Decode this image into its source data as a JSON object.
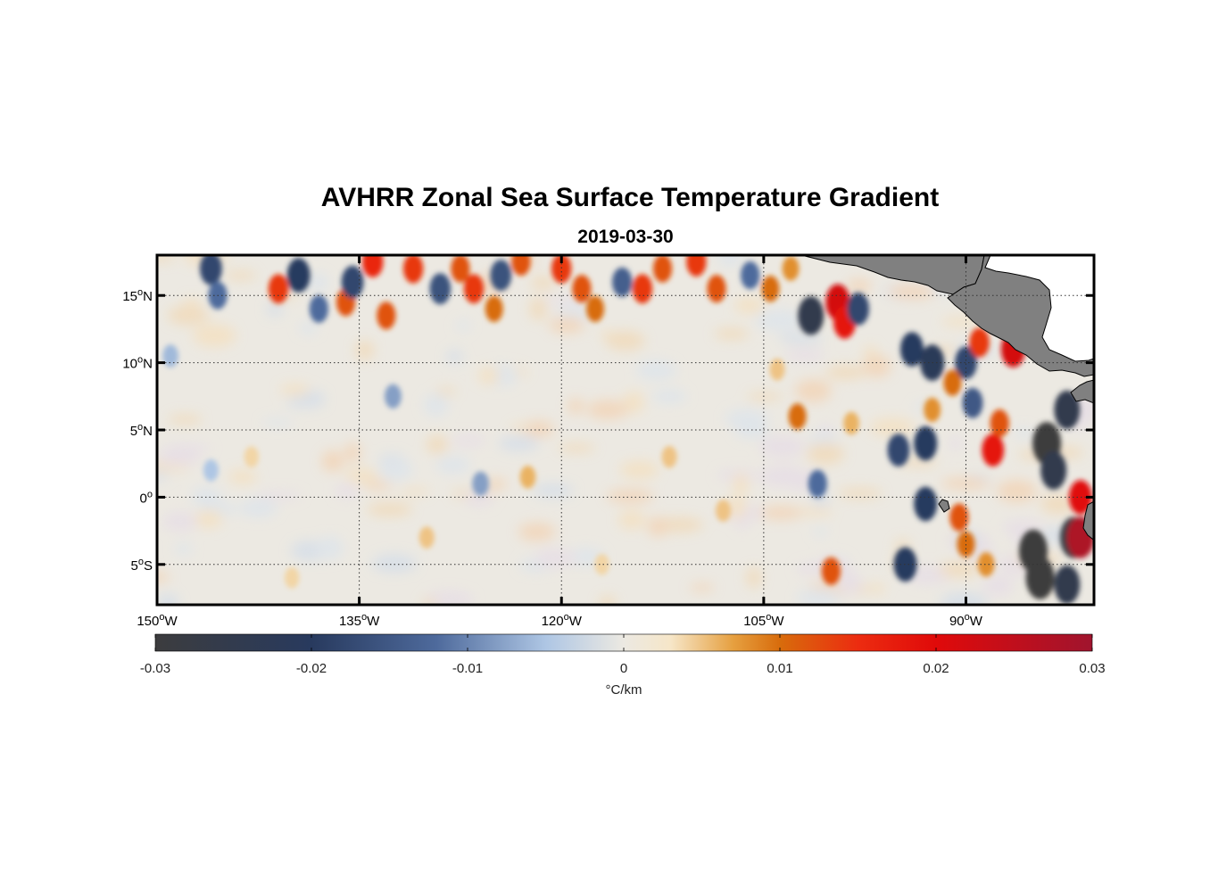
{
  "chart_data": {
    "type": "heatmap",
    "title": "AVHRR Zonal Sea Surface Temperature Gradient",
    "subtitle": "2019-03-30",
    "x_axis": {
      "range_deg": [
        -150,
        -80.5
      ],
      "ticks": [
        {
          "value": -150,
          "num": "150",
          "hemi": "W"
        },
        {
          "value": -135,
          "num": "135",
          "hemi": "W"
        },
        {
          "value": -120,
          "num": "120",
          "hemi": "W"
        },
        {
          "value": -105,
          "num": "105",
          "hemi": "W"
        },
        {
          "value": -90,
          "num": "90",
          "hemi": "W"
        }
      ]
    },
    "y_axis": {
      "range_deg": [
        -8,
        18
      ],
      "ticks": [
        {
          "value": 15,
          "num": "15",
          "hemi": "N"
        },
        {
          "value": 10,
          "num": "10",
          "hemi": "N"
        },
        {
          "value": 5,
          "num": "5",
          "hemi": "N"
        },
        {
          "value": 0,
          "num": "0",
          "hemi": ""
        },
        {
          "value": -5,
          "num": "5",
          "hemi": "S"
        }
      ]
    },
    "grid": true,
    "land_color": "#808080",
    "colorbar": {
      "range": [
        -0.03,
        0.03
      ],
      "ticks": [
        "-0.03",
        "-0.02",
        "-0.01",
        "0",
        "0.01",
        "0.02",
        "0.03"
      ],
      "tick_values": [
        -0.03,
        -0.02,
        -0.01,
        0,
        0.01,
        0.02,
        0.03
      ],
      "label": "°C/km",
      "stops": [
        {
          "v": -0.03,
          "color": "#3c3c3e"
        },
        {
          "v": -0.02,
          "color": "#283a5e"
        },
        {
          "v": -0.012,
          "color": "#4e6a9c"
        },
        {
          "v": -0.005,
          "color": "#aec6e4"
        },
        {
          "v": 0,
          "color": "#ece9e2"
        },
        {
          "v": 0.003,
          "color": "#f6e6c8"
        },
        {
          "v": 0.007,
          "color": "#e6a040"
        },
        {
          "v": 0.01,
          "color": "#d86c0c"
        },
        {
          "v": 0.015,
          "color": "#ec2c10"
        },
        {
          "v": 0.02,
          "color": "#e00a0a"
        },
        {
          "v": 0.03,
          "color": "#a0142e"
        }
      ]
    },
    "features": [
      {
        "lon": -101.5,
        "lat": 13.5,
        "value": -0.025
      },
      {
        "lon": -99.5,
        "lat": 14.5,
        "value": 0.022
      },
      {
        "lon": -99.0,
        "lat": 13.0,
        "value": 0.018
      },
      {
        "lon": -98.0,
        "lat": 14.0,
        "value": -0.018
      },
      {
        "lon": -94.0,
        "lat": 11.0,
        "value": -0.02
      },
      {
        "lon": -92.5,
        "lat": 10.0,
        "value": -0.022
      },
      {
        "lon": -90.0,
        "lat": 10.0,
        "value": -0.018
      },
      {
        "lon": -89.0,
        "lat": 11.5,
        "value": 0.014
      },
      {
        "lon": -86.5,
        "lat": 11.0,
        "value": 0.022
      },
      {
        "lon": -91.0,
        "lat": 8.5,
        "value": 0.01
      },
      {
        "lon": -92.5,
        "lat": 6.5,
        "value": 0.008
      },
      {
        "lon": -89.5,
        "lat": 7.0,
        "value": -0.015
      },
      {
        "lon": -87.5,
        "lat": 5.5,
        "value": 0.012
      },
      {
        "lon": -88.0,
        "lat": 3.5,
        "value": 0.018
      },
      {
        "lon": -84.0,
        "lat": 4.0,
        "value": -0.03
      },
      {
        "lon": -82.5,
        "lat": 6.5,
        "value": -0.025
      },
      {
        "lon": -83.5,
        "lat": 2.0,
        "value": -0.025
      },
      {
        "lon": -81.5,
        "lat": 0.0,
        "value": 0.02
      },
      {
        "lon": -85.0,
        "lat": -4.0,
        "value": -0.03
      },
      {
        "lon": -82.0,
        "lat": -3.0,
        "value": -0.028
      },
      {
        "lon": -81.5,
        "lat": -3.0,
        "value": 0.028
      },
      {
        "lon": -82.5,
        "lat": -6.5,
        "value": -0.025
      },
      {
        "lon": -84.5,
        "lat": -6.0,
        "value": -0.03
      },
      {
        "lon": -93.0,
        "lat": 4.0,
        "value": -0.02
      },
      {
        "lon": -95.0,
        "lat": 3.5,
        "value": -0.018
      },
      {
        "lon": -93.0,
        "lat": -0.5,
        "value": -0.02
      },
      {
        "lon": -94.5,
        "lat": -5.0,
        "value": -0.02
      },
      {
        "lon": -90.5,
        "lat": -1.5,
        "value": 0.012
      },
      {
        "lon": -90.0,
        "lat": -3.5,
        "value": 0.01
      },
      {
        "lon": -88.5,
        "lat": -5.0,
        "value": 0.008
      },
      {
        "lon": -100.0,
        "lat": -5.5,
        "value": 0.012
      },
      {
        "lon": -102.5,
        "lat": 6.0,
        "value": 0.01
      },
      {
        "lon": -101.0,
        "lat": 1.0,
        "value": -0.012
      },
      {
        "lon": -98.5,
        "lat": 5.5,
        "value": 0.006
      },
      {
        "lon": -146.0,
        "lat": 17.0,
        "value": -0.018
      },
      {
        "lon": -145.5,
        "lat": 15.0,
        "value": -0.012
      },
      {
        "lon": -141.0,
        "lat": 15.5,
        "value": 0.014
      },
      {
        "lon": -139.5,
        "lat": 16.5,
        "value": -0.02
      },
      {
        "lon": -138.0,
        "lat": 14.0,
        "value": -0.012
      },
      {
        "lon": -136.0,
        "lat": 14.5,
        "value": 0.012
      },
      {
        "lon": -135.5,
        "lat": 16.0,
        "value": -0.018
      },
      {
        "lon": -134.0,
        "lat": 17.5,
        "value": 0.016
      },
      {
        "lon": -133.0,
        "lat": 13.5,
        "value": 0.012
      },
      {
        "lon": -131.0,
        "lat": 17.0,
        "value": 0.014
      },
      {
        "lon": -129.0,
        "lat": 15.5,
        "value": -0.016
      },
      {
        "lon": -127.5,
        "lat": 17.0,
        "value": 0.012
      },
      {
        "lon": -126.5,
        "lat": 15.5,
        "value": 0.014
      },
      {
        "lon": -125.0,
        "lat": 14.0,
        "value": 0.01
      },
      {
        "lon": -124.5,
        "lat": 16.5,
        "value": -0.016
      },
      {
        "lon": -123.0,
        "lat": 17.5,
        "value": 0.012
      },
      {
        "lon": -120.0,
        "lat": 17.0,
        "value": 0.014
      },
      {
        "lon": -118.5,
        "lat": 15.5,
        "value": 0.012
      },
      {
        "lon": -117.5,
        "lat": 14.0,
        "value": 0.01
      },
      {
        "lon": -115.5,
        "lat": 16.0,
        "value": -0.014
      },
      {
        "lon": -114.0,
        "lat": 15.5,
        "value": 0.014
      },
      {
        "lon": -112.5,
        "lat": 17.0,
        "value": 0.012
      },
      {
        "lon": -110.0,
        "lat": 17.5,
        "value": 0.014
      },
      {
        "lon": -108.5,
        "lat": 15.5,
        "value": 0.012
      },
      {
        "lon": -106.0,
        "lat": 16.5,
        "value": -0.012
      },
      {
        "lon": -104.5,
        "lat": 15.5,
        "value": 0.01
      },
      {
        "lon": -103.0,
        "lat": 17.0,
        "value": 0.008
      },
      {
        "lon": -149.0,
        "lat": 10.5,
        "value": -0.006
      },
      {
        "lon": -143.0,
        "lat": 3.0,
        "value": 0.004
      },
      {
        "lon": -132.5,
        "lat": 7.5,
        "value": -0.008
      },
      {
        "lon": -126.0,
        "lat": 1.0,
        "value": -0.008
      },
      {
        "lon": -122.5,
        "lat": 1.5,
        "value": 0.006
      },
      {
        "lon": -130.0,
        "lat": -3.0,
        "value": 0.005
      },
      {
        "lon": -112.0,
        "lat": 3.0,
        "value": 0.005
      },
      {
        "lon": -108.0,
        "lat": -1.0,
        "value": 0.005
      },
      {
        "lon": -104.0,
        "lat": 9.5,
        "value": 0.005
      },
      {
        "lon": -117.0,
        "lat": -5.0,
        "value": 0.004
      },
      {
        "lon": -140.0,
        "lat": -6.0,
        "value": 0.004
      },
      {
        "lon": -146.0,
        "lat": 2.0,
        "value": -0.005
      }
    ]
  }
}
